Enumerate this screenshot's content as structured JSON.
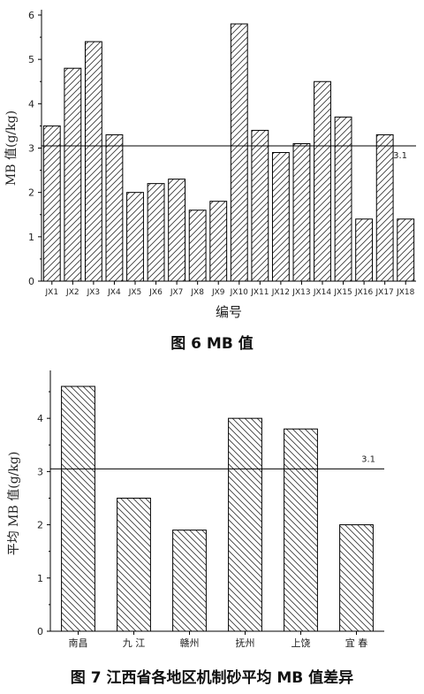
{
  "chart_data": [
    {
      "type": "bar",
      "caption": "图 6   MB 值",
      "xlabel": "编号",
      "ylabel": "MB 值(g/kg)",
      "ylim": [
        0,
        6
      ],
      "yticks": [
        "0",
        "1",
        "2",
        "3",
        "4",
        "5",
        "6"
      ],
      "categories": [
        "JX1",
        "JX2",
        "JX3",
        "JX4",
        "JX5",
        "JX6",
        "JX7",
        "JX8",
        "JX9",
        "JX10",
        "JX11",
        "JX12",
        "JX13",
        "JX14",
        "JX15",
        "JX16",
        "JX17",
        "JX18"
      ],
      "values": [
        3.5,
        4.8,
        5.4,
        3.3,
        2.0,
        2.2,
        2.3,
        1.6,
        1.8,
        5.8,
        3.4,
        2.9,
        3.1,
        4.5,
        3.7,
        1.4,
        3.3,
        1.4
      ],
      "reference_line": {
        "value": 3.05,
        "label": "3.1"
      },
      "bar_fill": "hatch-forward"
    },
    {
      "type": "bar",
      "caption": "图 7   江西省各地区机制砂平均 MB 值差异",
      "xlabel": "",
      "ylabel": "平均 MB 值(g/kg)",
      "ylim": [
        0,
        4.8
      ],
      "yticks": [
        "0",
        "1",
        "2",
        "3",
        "4"
      ],
      "categories": [
        "南昌",
        "九  江",
        "赣州",
        "抚州",
        "上饶",
        "宜  春"
      ],
      "values": [
        4.6,
        2.5,
        1.9,
        4.0,
        3.8,
        2.0
      ],
      "reference_line": {
        "value": 3.05,
        "label": "3.1"
      },
      "bar_fill": "hatch-back"
    }
  ]
}
